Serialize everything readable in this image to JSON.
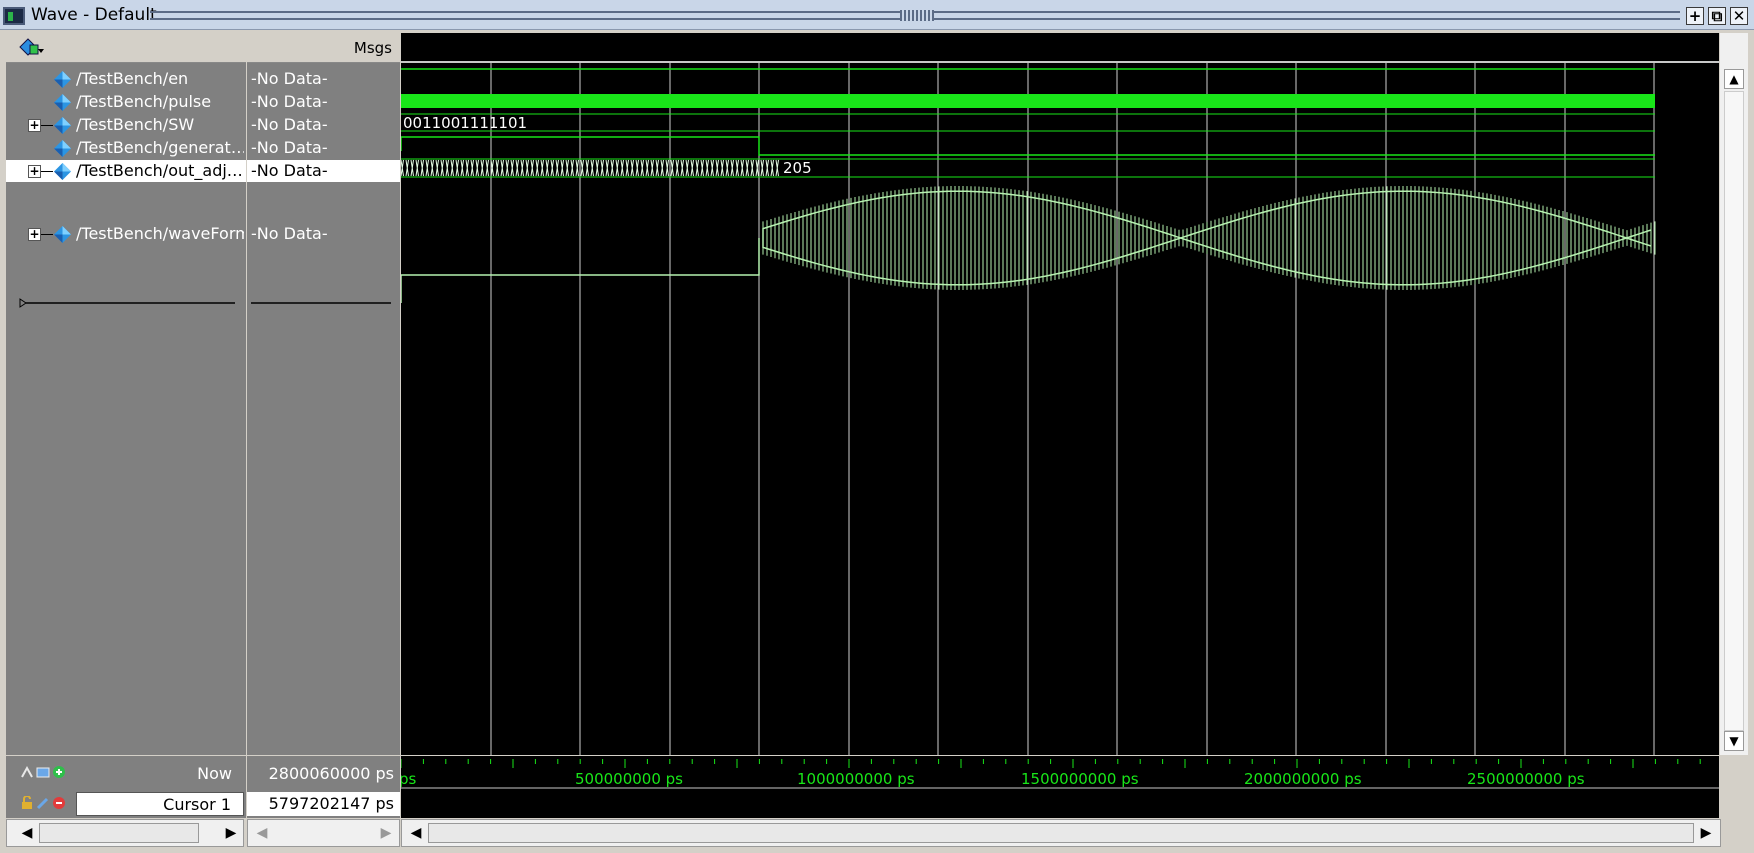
{
  "window": {
    "title": "Wave - Default",
    "buttons": [
      "+",
      "⧉",
      "✕"
    ]
  },
  "headers": {
    "values_title": "Msgs"
  },
  "signals": [
    {
      "name": "/TestBench/en",
      "value": "-No Data-",
      "expandable": false,
      "selected": false
    },
    {
      "name": "/TestBench/pulse",
      "value": "-No Data-",
      "expandable": false,
      "selected": false
    },
    {
      "name": "/TestBench/SW",
      "value": "-No Data-",
      "expandable": true,
      "selected": false
    },
    {
      "name": "/TestBench/generat…",
      "value": "-No Data-",
      "expandable": false,
      "selected": false
    },
    {
      "name": "/TestBench/out_adj…",
      "value": "-No Data-",
      "expandable": true,
      "selected": true
    },
    {
      "name": "/TestBench/waveForm",
      "value": "-No Data-",
      "expandable": true,
      "selected": false
    }
  ],
  "wave_labels": {
    "sw_value": "0011001111101",
    "out_adj_value": "205"
  },
  "status": {
    "now_label": "Now",
    "now_value": "2800060000 ps",
    "cursor_label": "Cursor 1",
    "cursor_value": "5797202147 ps"
  },
  "timeline": {
    "tick_labels": [
      "ps",
      "500000000 ps",
      "1000000000 ps",
      "1500000000 ps",
      "2000000000 ps",
      "2500000000 ps"
    ],
    "label_color": "#19e619"
  },
  "colors": {
    "wave_green": "#19e619",
    "analog_green": "#b6f2b0",
    "grid": "#d0d0d0"
  }
}
